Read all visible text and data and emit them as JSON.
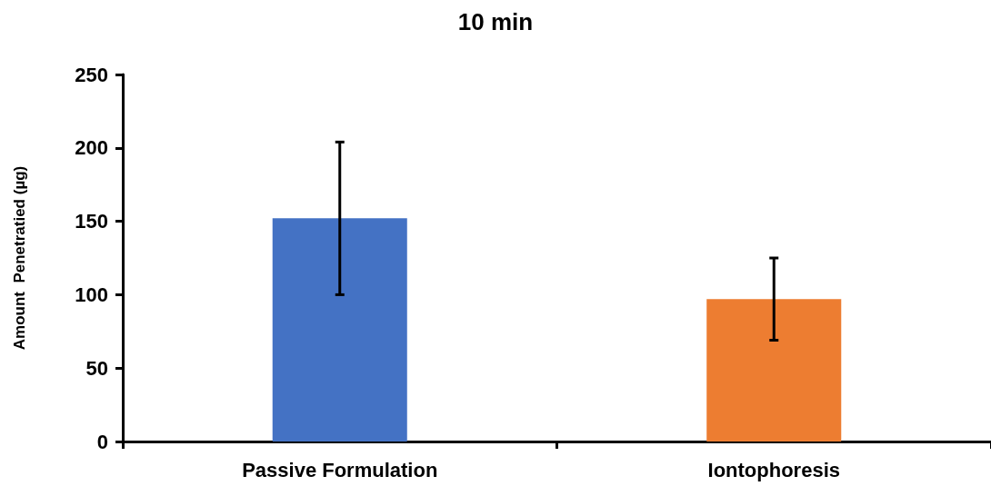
{
  "chart_data": {
    "type": "bar",
    "title": "10 min",
    "ylabel": "Amount  Penetratied (µg)",
    "categories": [
      "Passive Formulation",
      "Iontophoresis"
    ],
    "values": [
      152,
      97
    ],
    "colors": [
      "#4472c4",
      "#ed7d31"
    ],
    "errors": [
      52,
      28
    ],
    "ylim": [
      0,
      250
    ],
    "yticks": [
      0,
      50,
      100,
      150,
      200,
      250
    ],
    "grid": false
  }
}
